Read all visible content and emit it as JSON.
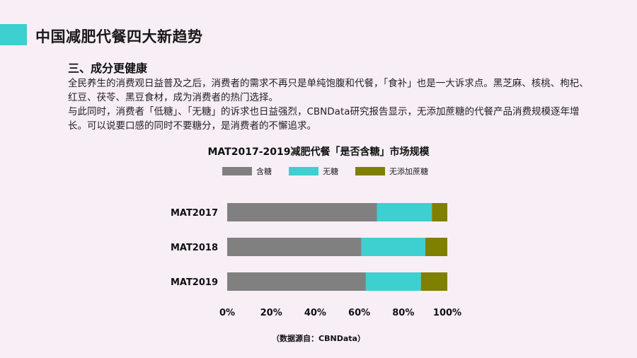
{
  "slide": {
    "title": "中国减肥代餐四大新趋势",
    "section_heading": "三、成分更健康",
    "paragraph1": "全民养生的消费观日益普及之后，消费者的需求不再只是单纯饱腹和代餐，「食补」也是一大诉求点。黑芝麻、核桃、枸杞、红豆、茯苓、黑豆食材，成为消费者的热门选择。",
    "paragraph2": "与此同时，消费者「低糖」、「无糖」的诉求也日益强烈，CBNData研究报告显示，无添加蔗糖的代餐产品消费规模逐年增长。可以说要口感的同时不要糖分，是消费者的不懈追求。",
    "source": "（数据源自：CBNData）",
    "accent_color": "#3ecfd0",
    "background_color": "#f8eef6"
  },
  "chart_data": {
    "type": "bar",
    "orientation": "horizontal",
    "stacked": "100%",
    "title": "MAT2017-2019减肥代餐「是否含糖」市场规模",
    "categories": [
      "MAT2017",
      "MAT2018",
      "MAT2019"
    ],
    "series": [
      {
        "name": "含糖",
        "color": "#808080",
        "values": [
          68,
          61,
          63
        ]
      },
      {
        "name": "无糖",
        "color": "#3ecfd0",
        "values": [
          25,
          29,
          25
        ]
      },
      {
        "name": "无添加蔗糖",
        "color": "#7f7f00",
        "values": [
          7,
          10,
          12
        ]
      }
    ],
    "xlim": [
      0,
      100
    ],
    "xticks": [
      "0%",
      "20%",
      "40%",
      "60%",
      "80%",
      "100%"
    ],
    "legend_position": "top",
    "grid": false
  }
}
